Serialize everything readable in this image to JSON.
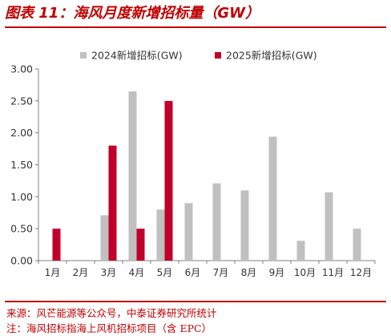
{
  "figure": {
    "title": "图表 11：海风月度新增招标量（GW）",
    "source": "来源：风芒能源等公众号，中泰证券研究所统计",
    "note": "注：海风招标指海上风机招标项目（含 EPC）"
  },
  "colors": {
    "accent": "#c00000",
    "series_2024": "#c0c0c0",
    "series_2025": "#c0002b"
  },
  "chart_data": {
    "type": "bar",
    "categories": [
      "1月",
      "2月",
      "3月",
      "4月",
      "5月",
      "6月",
      "7月",
      "8月",
      "9月",
      "10月",
      "11月",
      "12月"
    ],
    "series": [
      {
        "name": "2024新增招标(GW)",
        "values": [
          0,
          0,
          0.71,
          2.65,
          0.8,
          0.9,
          1.21,
          1.1,
          1.94,
          0.31,
          1.07,
          0.5
        ]
      },
      {
        "name": "2025新增招标(GW)",
        "values": [
          0.5,
          0,
          1.8,
          0.5,
          2.5,
          null,
          null,
          null,
          null,
          null,
          null,
          null
        ]
      }
    ],
    "yticks": [
      "0.00",
      "0.50",
      "1.00",
      "1.50",
      "2.00",
      "2.50",
      "3.00"
    ],
    "ylim": [
      0,
      3
    ],
    "xlabel": "",
    "ylabel": "",
    "grid": false,
    "legend": "top"
  }
}
